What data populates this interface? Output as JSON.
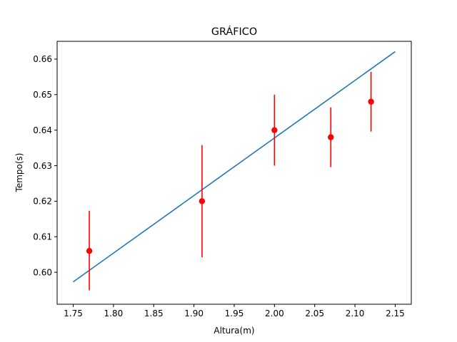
{
  "chart_data": {
    "type": "scatter",
    "title": "GRÁFICO",
    "xlabel": "Altura(m)",
    "ylabel": "Tempo(s)",
    "xlim": [
      1.73,
      2.17
    ],
    "ylim": [
      0.591,
      0.665
    ],
    "xticks": [
      1.75,
      1.8,
      1.85,
      1.9,
      1.95,
      2.0,
      2.05,
      2.1,
      2.15
    ],
    "xtick_labels": [
      "1.75",
      "1.80",
      "1.85",
      "1.90",
      "1.95",
      "2.00",
      "2.05",
      "2.10",
      "2.15"
    ],
    "yticks": [
      0.6,
      0.61,
      0.62,
      0.63,
      0.64,
      0.65,
      0.66
    ],
    "ytick_labels": [
      "0.60",
      "0.61",
      "0.62",
      "0.63",
      "0.64",
      "0.65",
      "0.66"
    ],
    "grid": false,
    "points": {
      "x": [
        1.77,
        1.91,
        2.0,
        2.07,
        2.12
      ],
      "y": [
        0.606,
        0.62,
        0.64,
        0.638,
        0.648
      ],
      "yerr_low": [
        0.5949,
        0.6042,
        0.63,
        0.6296,
        0.6396
      ],
      "yerr_high": [
        0.6173,
        0.6358,
        0.65,
        0.6464,
        0.6564
      ],
      "color": "#ff0000"
    },
    "fit_line": {
      "x": [
        1.75,
        2.15
      ],
      "y": [
        0.5973,
        0.6621
      ],
      "color": "#1f77b4"
    }
  }
}
